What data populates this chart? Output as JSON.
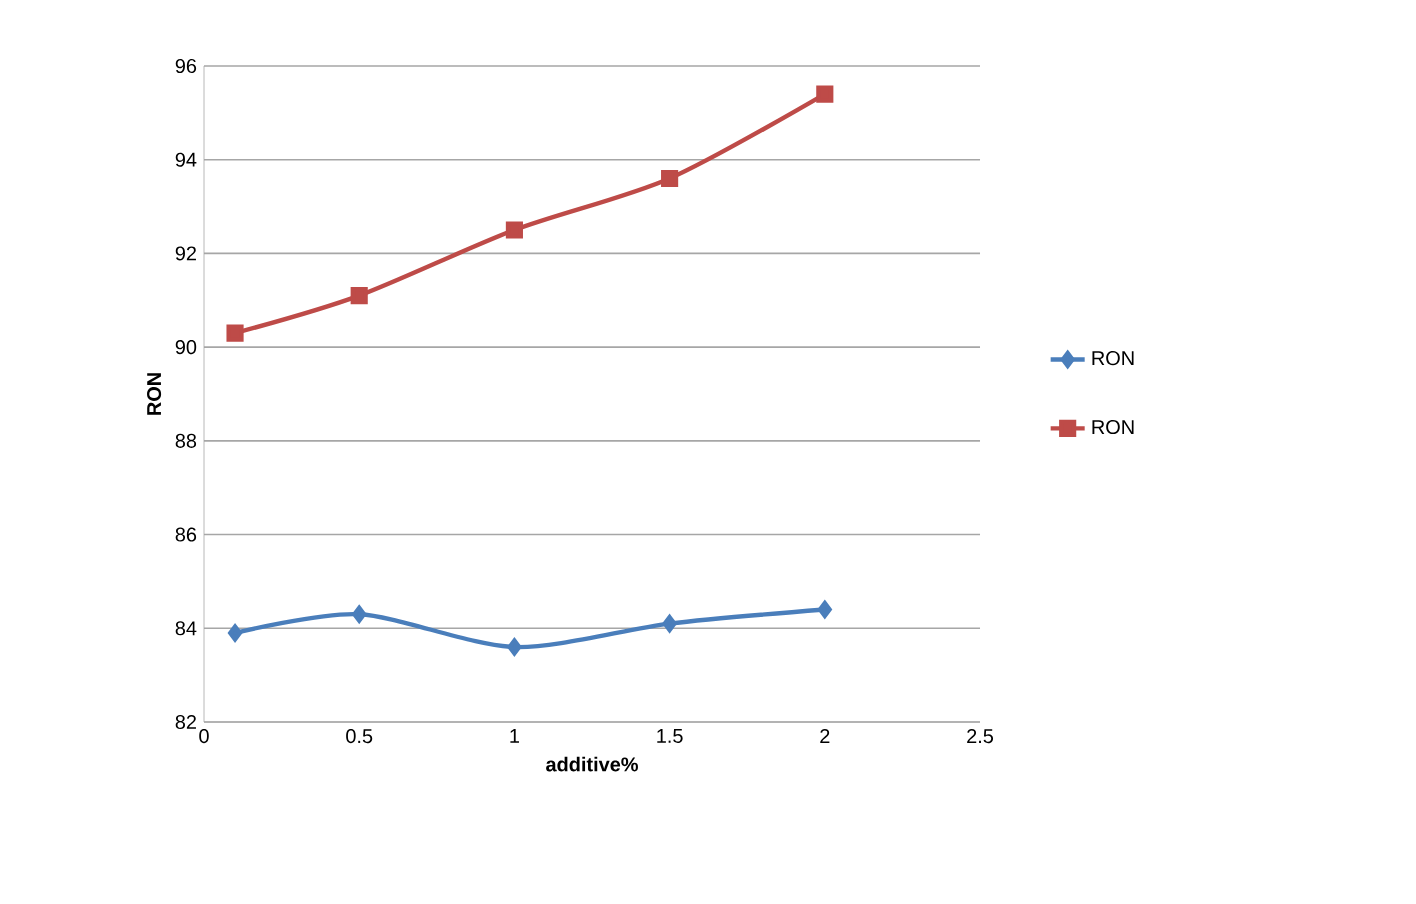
{
  "chart_data": {
    "type": "line",
    "xlabel": "additive%",
    "ylabel": "RON",
    "x": [
      0.1,
      0.5,
      1,
      1.5,
      2
    ],
    "series": [
      {
        "name": "RON",
        "color": "#4a7ebb",
        "marker": "diamond",
        "values": [
          83.9,
          84.3,
          83.6,
          84.1,
          84.4
        ]
      },
      {
        "name": "RON",
        "color": "#be4b48",
        "marker": "square",
        "values": [
          90.3,
          91.1,
          92.5,
          93.6,
          95.4
        ]
      }
    ],
    "xlim": [
      0,
      2.5
    ],
    "xticks": [
      0,
      0.5,
      1,
      1.5,
      2,
      2.5
    ],
    "ylim": [
      82,
      96
    ],
    "yticks": [
      82,
      84,
      86,
      88,
      90,
      92,
      94,
      96
    ],
    "grid": "y",
    "legend": "right"
  }
}
